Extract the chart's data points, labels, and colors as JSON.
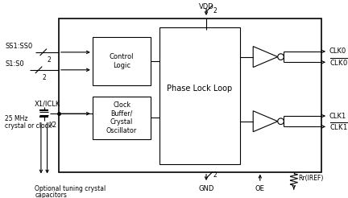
{
  "bg_color": "#ffffff",
  "line_color": "#000000",
  "text_color": "#000000",
  "fig_width": 4.32,
  "fig_height": 2.46,
  "dpi": 100,
  "labels": {
    "vdd": "VDD",
    "vdd_num": "2",
    "gnd": "GND",
    "gnd_num": "2",
    "oe": "OE",
    "rr": "Rr(IREF)",
    "ss1ss0": "SS1:SS0",
    "ss1ss0_num": "2",
    "s1s0": "S1:S0",
    "s1s0_num": "2",
    "x1iclk": "X1/ICLK",
    "x2": "X2",
    "mhz": "25 MHz",
    "crystal_clock": "crystal or clock",
    "optional": "Optional tuning crystal",
    "capacitors": "capacitors",
    "control_logic": "Control\nLogic",
    "clk_buffer": "Clock\nBuffer/\nCrystal\nOscillator",
    "pll": "Phase Lock Loop",
    "clk0": "CLK0",
    "clk1": "CLK1"
  }
}
